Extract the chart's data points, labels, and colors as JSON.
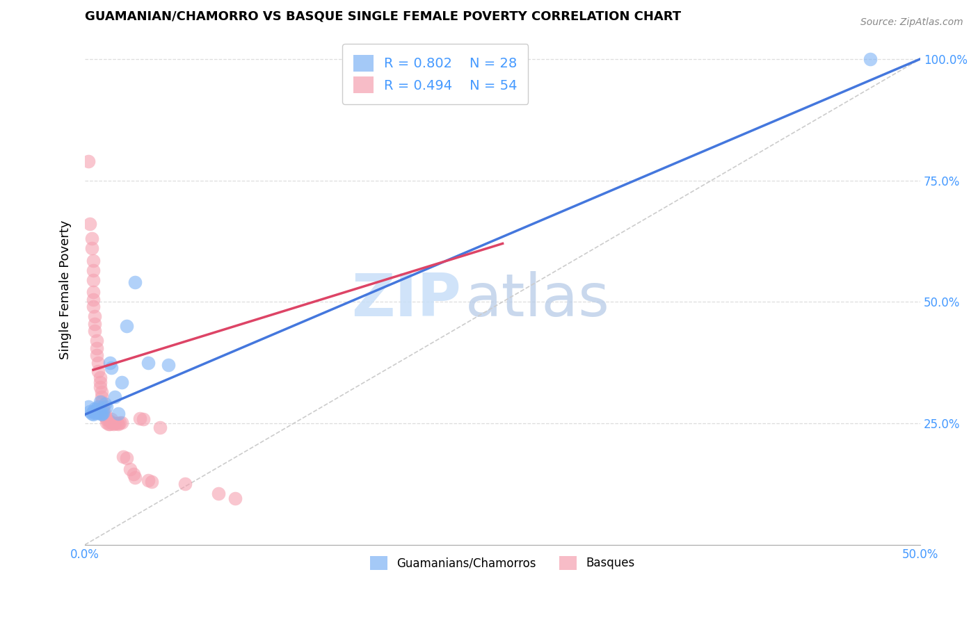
{
  "title": "GUAMANIAN/CHAMORRO VS BASQUE SINGLE FEMALE POVERTY CORRELATION CHART",
  "source": "Source: ZipAtlas.com",
  "xlabel_color": "#4499ff",
  "ylabel": "Single Female Poverty",
  "xlim": [
    0.0,
    0.5
  ],
  "ylim": [
    0.0,
    1.05
  ],
  "y_ticks_right": [
    0.25,
    0.5,
    0.75,
    1.0
  ],
  "y_tick_labels_right": [
    "25.0%",
    "50.0%",
    "75.0%",
    "100.0%"
  ],
  "watermark_zip": "ZIP",
  "watermark_atlas": "atlas",
  "legend_R_blue": "0.802",
  "legend_N_blue": "28",
  "legend_R_pink": "0.494",
  "legend_N_pink": "54",
  "legend_label_blue": "Guamanians/Chamorros",
  "legend_label_pink": "Basques",
  "blue_color": "#7EB3F5",
  "pink_color": "#F5A0B0",
  "blue_line_color": "#4477DD",
  "pink_line_color": "#DD4466",
  "diagonal_color": "#cccccc",
  "blue_scatter": [
    [
      0.002,
      0.285
    ],
    [
      0.003,
      0.275
    ],
    [
      0.004,
      0.27
    ],
    [
      0.005,
      0.268
    ],
    [
      0.005,
      0.275
    ],
    [
      0.006,
      0.272
    ],
    [
      0.006,
      0.28
    ],
    [
      0.007,
      0.272
    ],
    [
      0.007,
      0.278
    ],
    [
      0.008,
      0.275
    ],
    [
      0.008,
      0.285
    ],
    [
      0.009,
      0.272
    ],
    [
      0.009,
      0.295
    ],
    [
      0.01,
      0.27
    ],
    [
      0.01,
      0.268
    ],
    [
      0.011,
      0.272
    ],
    [
      0.012,
      0.29
    ],
    [
      0.013,
      0.285
    ],
    [
      0.015,
      0.375
    ],
    [
      0.016,
      0.365
    ],
    [
      0.018,
      0.305
    ],
    [
      0.02,
      0.27
    ],
    [
      0.022,
      0.335
    ],
    [
      0.025,
      0.45
    ],
    [
      0.03,
      0.54
    ],
    [
      0.038,
      0.375
    ],
    [
      0.05,
      0.37
    ],
    [
      0.47,
      1.0
    ]
  ],
  "pink_scatter": [
    [
      0.002,
      0.79
    ],
    [
      0.003,
      0.66
    ],
    [
      0.004,
      0.63
    ],
    [
      0.004,
      0.61
    ],
    [
      0.005,
      0.585
    ],
    [
      0.005,
      0.565
    ],
    [
      0.005,
      0.545
    ],
    [
      0.005,
      0.52
    ],
    [
      0.005,
      0.505
    ],
    [
      0.005,
      0.49
    ],
    [
      0.006,
      0.47
    ],
    [
      0.006,
      0.455
    ],
    [
      0.006,
      0.44
    ],
    [
      0.007,
      0.42
    ],
    [
      0.007,
      0.405
    ],
    [
      0.007,
      0.39
    ],
    [
      0.008,
      0.375
    ],
    [
      0.008,
      0.358
    ],
    [
      0.009,
      0.345
    ],
    [
      0.009,
      0.335
    ],
    [
      0.009,
      0.325
    ],
    [
      0.01,
      0.315
    ],
    [
      0.01,
      0.305
    ],
    [
      0.01,
      0.295
    ],
    [
      0.011,
      0.285
    ],
    [
      0.011,
      0.278
    ],
    [
      0.012,
      0.27
    ],
    [
      0.012,
      0.265
    ],
    [
      0.013,
      0.258
    ],
    [
      0.013,
      0.252
    ],
    [
      0.014,
      0.248
    ],
    [
      0.015,
      0.255
    ],
    [
      0.015,
      0.248
    ],
    [
      0.016,
      0.258
    ],
    [
      0.016,
      0.252
    ],
    [
      0.017,
      0.248
    ],
    [
      0.018,
      0.25
    ],
    [
      0.019,
      0.25
    ],
    [
      0.02,
      0.248
    ],
    [
      0.021,
      0.252
    ],
    [
      0.022,
      0.252
    ],
    [
      0.023,
      0.182
    ],
    [
      0.025,
      0.178
    ],
    [
      0.027,
      0.155
    ],
    [
      0.029,
      0.145
    ],
    [
      0.03,
      0.138
    ],
    [
      0.033,
      0.26
    ],
    [
      0.035,
      0.258
    ],
    [
      0.038,
      0.132
    ],
    [
      0.04,
      0.13
    ],
    [
      0.045,
      0.242
    ],
    [
      0.06,
      0.125
    ],
    [
      0.08,
      0.105
    ],
    [
      0.09,
      0.095
    ]
  ],
  "blue_line": {
    "x0": 0.0,
    "y0": 0.268,
    "x1": 0.5,
    "y1": 1.0
  },
  "pink_line": {
    "x0": 0.005,
    "y0": 0.36,
    "x1": 0.25,
    "y1": 0.62
  },
  "diagonal_line": {
    "x0": 0.0,
    "y0": 0.0,
    "x1": 0.5,
    "y1": 1.0
  },
  "background_color": "#ffffff",
  "grid_color": "#dddddd"
}
